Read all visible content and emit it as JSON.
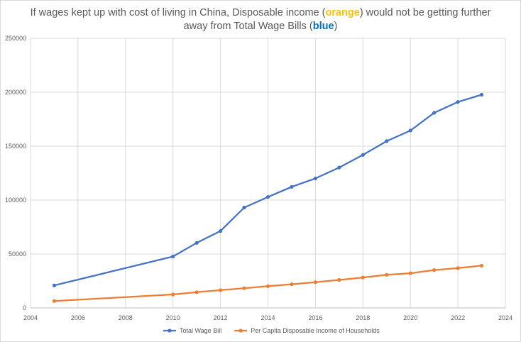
{
  "title": {
    "part1": "If wages kept up with cost of living in China, Disposable income (",
    "orange_word": "orange",
    "part2": ") would not be getting further",
    "part3": "away from Total Wage Bills (",
    "blue_word": "blue",
    "part4": ")"
  },
  "chart_data": {
    "type": "scatter",
    "title": "If wages kept up with cost of living in China, Disposable income (orange) would not be getting further away from Total Wage Bills (blue)",
    "xlim": [
      2004,
      2024
    ],
    "ylim": [
      0,
      250000
    ],
    "x_ticks": [
      "2004",
      "2006",
      "2008",
      "2010",
      "2012",
      "2014",
      "2016",
      "2018",
      "2020",
      "2022",
      "2024"
    ],
    "y_ticks": [
      "0",
      "50000",
      "100000",
      "150000",
      "200000",
      "250000"
    ],
    "grid": true,
    "legend_position": "bottom",
    "series": [
      {
        "name": "Total Wage Bill",
        "color": "#4472c4",
        "x": [
          2005,
          2010,
          2011,
          2012,
          2013,
          2014,
          2015,
          2016,
          2017,
          2018,
          2019,
          2020,
          2021,
          2022,
          2023
        ],
        "y": [
          20900,
          47700,
          60300,
          71300,
          93100,
          102900,
          112300,
          120100,
          130200,
          141900,
          154700,
          164500,
          180900,
          191000,
          197700
        ]
      },
      {
        "name": "Per Capita Disposable Income of Households",
        "color": "#ed7d31",
        "x": [
          2005,
          2010,
          2011,
          2012,
          2013,
          2014,
          2015,
          2016,
          2017,
          2018,
          2019,
          2020,
          2021,
          2022,
          2023
        ],
        "y": [
          6400,
          12500,
          14600,
          16500,
          18300,
          20200,
          22000,
          23800,
          26000,
          28200,
          30700,
          32200,
          35100,
          36900,
          39200
        ]
      }
    ]
  }
}
